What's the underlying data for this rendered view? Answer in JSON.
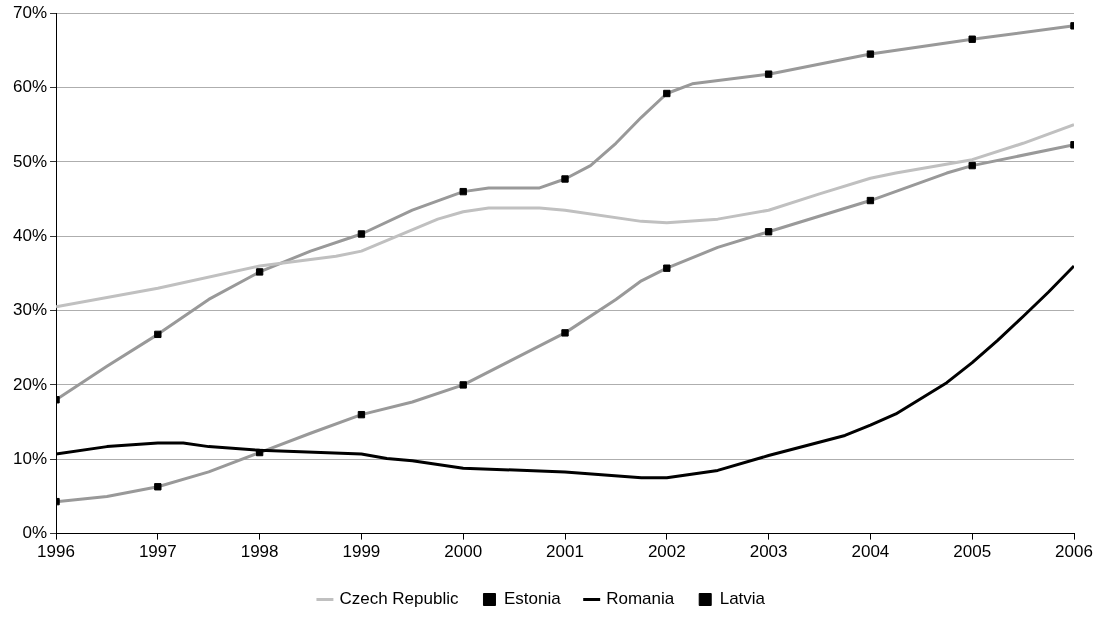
{
  "chart_data": {
    "type": "line",
    "xlim": [
      1996,
      2006
    ],
    "xticks": [
      1996,
      1997,
      1998,
      1999,
      2000,
      2001,
      2002,
      2003,
      2004,
      2005,
      2006
    ],
    "ylim": [
      0,
      70
    ],
    "yticks": [
      {
        "value": 0,
        "label": "0%"
      },
      {
        "value": 10,
        "label": "10%"
      },
      {
        "value": 20,
        "label": "20%"
      },
      {
        "value": 30,
        "label": "30%"
      },
      {
        "value": 40,
        "label": "40%"
      },
      {
        "value": 50,
        "label": "50%"
      },
      {
        "value": 60,
        "label": "60%"
      },
      {
        "value": 70,
        "label": "70%"
      }
    ],
    "grid": "y",
    "legend": "bottom",
    "line_style": "solid",
    "series": [
      {
        "name": "Czech Republic",
        "color": "#c0c0c0",
        "marker": "none",
        "x": [
          1996,
          1997,
          1998,
          1998.75,
          1999,
          1999.75,
          2000,
          2000.25,
          2000.75,
          2001,
          2001.75,
          2002,
          2002.5,
          2003,
          2003.5,
          2004,
          2004.25,
          2005,
          2005.5,
          2006
        ],
        "values": [
          30.5,
          33,
          36,
          37.3,
          38,
          42.3,
          43.3,
          43.8,
          43.8,
          43.5,
          42,
          41.8,
          42.3,
          43.5,
          45.7,
          47.8,
          48.5,
          50.3,
          52.5,
          55
        ]
      },
      {
        "name": "Estonia",
        "color": "#999999",
        "marker": "square",
        "x": [
          1996,
          1996.5,
          1997,
          1997.5,
          1998,
          1998.5,
          1999,
          1999.5,
          2000,
          2000.25,
          2000.75,
          2001,
          2001.25,
          2001.5,
          2001.75,
          2002,
          2002.25,
          2003,
          2004,
          2005,
          2006
        ],
        "values": [
          18,
          22.5,
          26.8,
          31.5,
          35.2,
          38,
          40.3,
          43.5,
          46,
          46.5,
          46.5,
          47.7,
          49.5,
          52.5,
          56,
          59.2,
          60.5,
          61.8,
          64.5,
          66.5,
          68.3
        ]
      },
      {
        "name": "Romania",
        "color": "#000000",
        "marker": "none",
        "x": [
          1996,
          1996.5,
          1997,
          1997.25,
          1997.5,
          1998,
          1999,
          1999.25,
          1999.5,
          2000,
          2001,
          2001.75,
          2002,
          2002.5,
          2003,
          2003.75,
          2004,
          2004.25,
          2004.75,
          2005,
          2005.25,
          2005.5,
          2005.75,
          2006
        ],
        "values": [
          10.7,
          11.7,
          12.2,
          12.2,
          11.7,
          11.2,
          10.7,
          10.1,
          9.8,
          8.8,
          8.3,
          7.5,
          7.5,
          8.5,
          10.5,
          13.2,
          14.6,
          16.1,
          20.3,
          23,
          26,
          29.2,
          32.5,
          36
        ]
      },
      {
        "name": "Latvia",
        "color": "#999999",
        "marker": "square",
        "x": [
          1996,
          1996.5,
          1997,
          1997.5,
          1998,
          1998.5,
          1999,
          1999.5,
          2000,
          2000.5,
          2001,
          2001.5,
          2001.75,
          2002,
          2002.5,
          2003,
          2004,
          2004.75,
          2005,
          2006
        ],
        "values": [
          4.3,
          5,
          6.3,
          8.3,
          10.9,
          13.5,
          16,
          17.7,
          20,
          23.5,
          27,
          31.5,
          34,
          35.7,
          38.5,
          40.6,
          44.8,
          48.5,
          49.5,
          52.3
        ]
      }
    ]
  }
}
